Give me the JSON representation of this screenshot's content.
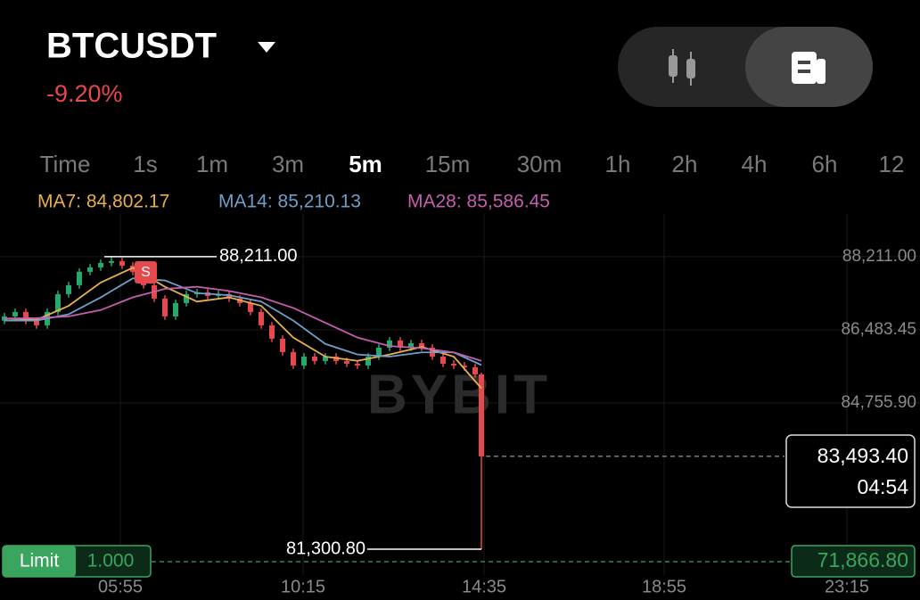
{
  "header": {
    "symbol": "BTCUSDT",
    "change": "-9.20%"
  },
  "intervals": [
    "Time",
    "1s",
    "1m",
    "3m",
    "5m",
    "15m",
    "30m",
    "1h",
    "2h",
    "4h",
    "6h",
    "12"
  ],
  "active_interval": "5m",
  "ma_legend": [
    {
      "label": "MA7: 84,802.17",
      "color": "#e8b04c"
    },
    {
      "label": "MA14: 85,210.13",
      "color": "#6f9fc8"
    },
    {
      "label": "MA28: 85,586.45",
      "color": "#c45fb0"
    }
  ],
  "chart_data": {
    "type": "candlestick",
    "up_color": "#27a96d",
    "down_color": "#e5484d",
    "open": [
      86700,
      86799,
      86905,
      86694,
      86589,
      86905,
      87326,
      87537,
      87853,
      87958,
      88064,
      88106,
      88000,
      87853,
      87537,
      87221,
      86799,
      87115,
      87326,
      87368,
      87284,
      87326,
      87221,
      87115,
      86905,
      86589,
      86273,
      85957,
      85640,
      85851,
      85746,
      85851,
      85746,
      85683,
      85640,
      85851,
      86062,
      86230,
      86062,
      86167,
      86062,
      85851,
      85683,
      85640,
      85598,
      85430
    ],
    "high": [
      86880,
      86985,
      86985,
      86774,
      86985,
      87406,
      87617,
      87933,
      88038,
      88144,
      88211,
      88186,
      88080,
      87933,
      87617,
      87301,
      87195,
      87406,
      87448,
      87448,
      87406,
      87406,
      87301,
      87195,
      86985,
      86669,
      86353,
      86037,
      85931,
      85931,
      85931,
      85931,
      85826,
      85763,
      85931,
      86142,
      86310,
      86310,
      86247,
      86247,
      86142,
      85931,
      85763,
      85720,
      85678,
      85470
    ],
    "low": [
      86620,
      86720,
      86614,
      86509,
      86509,
      86825,
      87246,
      87457,
      87773,
      87878,
      87984,
      87920,
      87773,
      87457,
      87141,
      86719,
      86719,
      87035,
      87246,
      87204,
      87204,
      87141,
      87035,
      86825,
      86509,
      86193,
      85877,
      85560,
      85560,
      85666,
      85666,
      85666,
      85603,
      85560,
      85560,
      85771,
      85982,
      85982,
      85982,
      85982,
      85771,
      85603,
      85560,
      85518,
      85350,
      81300.8
    ],
    "close": [
      86799,
      86905,
      86694,
      86589,
      86905,
      87326,
      87537,
      87853,
      87958,
      88064,
      88106,
      88000,
      87853,
      87537,
      87221,
      86799,
      87115,
      87326,
      87368,
      87284,
      87326,
      87221,
      87115,
      86905,
      86589,
      86273,
      85957,
      85640,
      85851,
      85746,
      85851,
      85746,
      85683,
      85640,
      85851,
      86062,
      86230,
      86062,
      86167,
      86062,
      85851,
      85683,
      85640,
      85598,
      85430,
      83493.4
    ],
    "ma_series": [
      {
        "color": "#e8b04c",
        "values": [
          86750,
          86720,
          87050,
          87600,
          87950,
          87500,
          87150,
          87250,
          87050,
          86300,
          85850,
          85750,
          85900,
          86080,
          85850,
          85100
        ]
      },
      {
        "color": "#6f9fc8",
        "values": [
          86700,
          86700,
          86850,
          87250,
          87700,
          87650,
          87350,
          87300,
          87150,
          86700,
          86150,
          85900,
          85850,
          85950,
          85950,
          85650
        ]
      },
      {
        "color": "#c45fb0",
        "values": [
          86750,
          86760,
          86800,
          86950,
          87250,
          87450,
          87500,
          87400,
          87250,
          87000,
          86650,
          86300,
          86100,
          86050,
          85950,
          85750
        ]
      }
    ],
    "ylim": [
      80690,
      89220
    ],
    "yticks": [
      {
        "value": 88211,
        "label": "88,211.00"
      },
      {
        "value": 86483.45,
        "label": "86,483.45"
      },
      {
        "value": 84755.9,
        "label": "84,755.90"
      }
    ],
    "x_labels": [
      "05:55",
      "10:15",
      "14:35",
      "18:55",
      "23:15"
    ],
    "high_marker": {
      "value": 88211,
      "label": "88,211.00"
    },
    "low_marker": {
      "value": 81300.8,
      "label": "81,300.80"
    },
    "last_price": {
      "value": 83493.4,
      "label": "83,493.40"
    },
    "countdown": "04:54",
    "trade_marker": "S",
    "watermark": "BYBIT",
    "order": {
      "type": "Limit",
      "qty": "1.000",
      "price": "71,866.80"
    }
  }
}
